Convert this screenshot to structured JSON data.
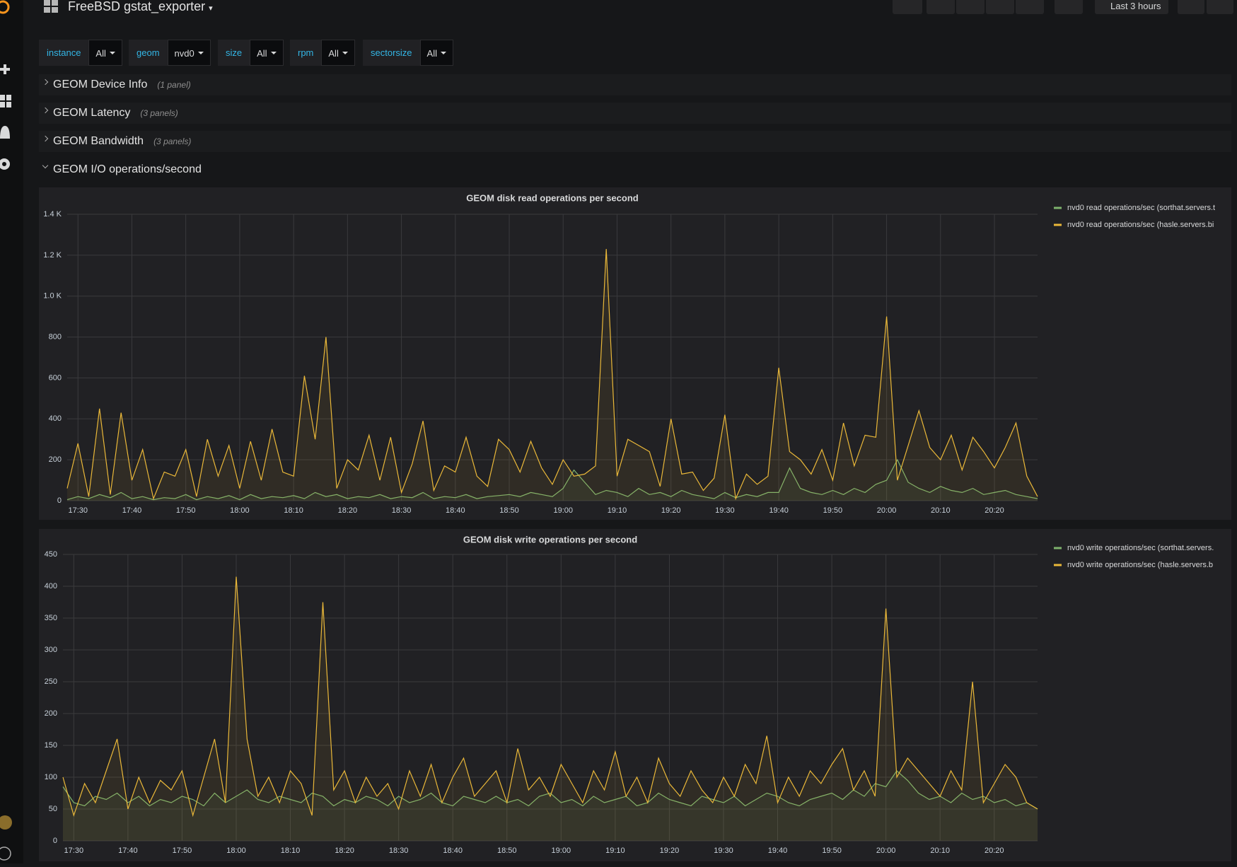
{
  "header": {
    "title": "FreeBSD gstat_exporter",
    "time_range": "Last 3 hours"
  },
  "variables": [
    {
      "label": "instance",
      "value": "All"
    },
    {
      "label": "geom",
      "value": "nvd0"
    },
    {
      "label": "size",
      "value": "All"
    },
    {
      "label": "rpm",
      "value": "All"
    },
    {
      "label": "sectorsize",
      "value": "All"
    }
  ],
  "rows": [
    {
      "title": "GEOM Device Info",
      "note": "(1 panel)"
    },
    {
      "title": "GEOM Latency",
      "note": "(3 panels)"
    },
    {
      "title": "GEOM Bandwidth",
      "note": "(3 panels)"
    },
    {
      "title": "GEOM I/O operations/second"
    }
  ],
  "chart_data": [
    {
      "type": "line",
      "title": "GEOM disk read operations per second",
      "x": [
        "17:28",
        "17:30",
        "17:32",
        "17:34",
        "17:36",
        "17:38",
        "17:40",
        "17:42",
        "17:44",
        "17:46",
        "17:48",
        "17:50",
        "17:52",
        "17:54",
        "17:56",
        "17:58",
        "18:00",
        "18:02",
        "18:04",
        "18:06",
        "18:08",
        "18:10",
        "18:12",
        "18:14",
        "18:16",
        "18:18",
        "18:20",
        "18:22",
        "18:24",
        "18:26",
        "18:28",
        "18:30",
        "18:32",
        "18:34",
        "18:36",
        "18:38",
        "18:40",
        "18:42",
        "18:44",
        "18:46",
        "18:48",
        "18:50",
        "18:52",
        "18:54",
        "18:56",
        "18:58",
        "19:00",
        "19:02",
        "19:04",
        "19:06",
        "19:08",
        "19:10",
        "19:12",
        "19:14",
        "19:16",
        "19:18",
        "19:20",
        "19:22",
        "19:24",
        "19:26",
        "19:28",
        "19:30",
        "19:32",
        "19:34",
        "19:36",
        "19:38",
        "19:40",
        "19:42",
        "19:44",
        "19:46",
        "19:48",
        "19:50",
        "19:52",
        "19:54",
        "19:56",
        "19:58",
        "20:00",
        "20:02",
        "20:04",
        "20:06",
        "20:08",
        "20:10",
        "20:12",
        "20:14",
        "20:16",
        "20:18",
        "20:20",
        "20:22",
        "20:24",
        "20:26",
        "20:28"
      ],
      "series": [
        {
          "name": "nvd0 read operations/sec (sorthat.servers.t",
          "color": "#7eb26d",
          "values": [
            5,
            20,
            10,
            30,
            15,
            40,
            10,
            20,
            5,
            15,
            10,
            30,
            5,
            20,
            10,
            25,
            5,
            30,
            10,
            20,
            15,
            25,
            10,
            40,
            20,
            30,
            10,
            20,
            15,
            30,
            10,
            20,
            15,
            40,
            10,
            20,
            15,
            30,
            10,
            20,
            25,
            30,
            20,
            40,
            30,
            20,
            60,
            150,
            90,
            30,
            50,
            40,
            20,
            60,
            30,
            40,
            20,
            50,
            30,
            20,
            10,
            40,
            15,
            30,
            20,
            40,
            40,
            160,
            60,
            40,
            30,
            50,
            30,
            60,
            40,
            80,
            100,
            200,
            90,
            60,
            40,
            70,
            50,
            40,
            60,
            30,
            40,
            50,
            30,
            20,
            10
          ]
        },
        {
          "name": "nvd0 read operations/sec (hasle.servers.bi",
          "color": "#eab839",
          "values": [
            60,
            280,
            20,
            450,
            30,
            430,
            100,
            250,
            10,
            140,
            120,
            250,
            20,
            300,
            120,
            270,
            60,
            290,
            100,
            350,
            140,
            120,
            610,
            300,
            800,
            60,
            200,
            150,
            320,
            100,
            310,
            40,
            180,
            390,
            50,
            170,
            140,
            310,
            120,
            70,
            300,
            250,
            140,
            290,
            160,
            80,
            200,
            120,
            130,
            170,
            1230,
            120,
            300,
            270,
            240,
            70,
            400,
            130,
            140,
            50,
            110,
            420,
            10,
            130,
            80,
            120,
            650,
            240,
            200,
            130,
            250,
            100,
            380,
            170,
            320,
            310,
            900,
            100,
            270,
            440,
            260,
            200,
            320,
            150,
            310,
            240,
            160,
            260,
            380,
            120,
            20
          ]
        }
      ],
      "xlim": [
        "17:28",
        "20:28"
      ],
      "xticks": [
        "17:30",
        "17:40",
        "17:50",
        "18:00",
        "18:10",
        "18:20",
        "18:30",
        "18:40",
        "18:50",
        "19:00",
        "19:10",
        "19:20",
        "19:30",
        "19:40",
        "19:50",
        "20:00",
        "20:10",
        "20:20"
      ],
      "ylim": [
        0,
        1400
      ],
      "yticks": [
        0,
        200,
        400,
        600,
        800,
        {
          "value": 1000,
          "label": "1.0 K"
        },
        {
          "value": 1200,
          "label": "1.2 K"
        },
        {
          "value": 1400,
          "label": "1.4 K"
        }
      ],
      "grid": true,
      "legend": "right"
    },
    {
      "type": "line",
      "title": "GEOM disk write operations per second",
      "x": [
        "17:28",
        "17:30",
        "17:32",
        "17:34",
        "17:36",
        "17:38",
        "17:40",
        "17:42",
        "17:44",
        "17:46",
        "17:48",
        "17:50",
        "17:52",
        "17:54",
        "17:56",
        "17:58",
        "18:00",
        "18:02",
        "18:04",
        "18:06",
        "18:08",
        "18:10",
        "18:12",
        "18:14",
        "18:16",
        "18:18",
        "18:20",
        "18:22",
        "18:24",
        "18:26",
        "18:28",
        "18:30",
        "18:32",
        "18:34",
        "18:36",
        "18:38",
        "18:40",
        "18:42",
        "18:44",
        "18:46",
        "18:48",
        "18:50",
        "18:52",
        "18:54",
        "18:56",
        "18:58",
        "19:00",
        "19:02",
        "19:04",
        "19:06",
        "19:08",
        "19:10",
        "19:12",
        "19:14",
        "19:16",
        "19:18",
        "19:20",
        "19:22",
        "19:24",
        "19:26",
        "19:28",
        "19:30",
        "19:32",
        "19:34",
        "19:36",
        "19:38",
        "19:40",
        "19:42",
        "19:44",
        "19:46",
        "19:48",
        "19:50",
        "19:52",
        "19:54",
        "19:56",
        "19:58",
        "20:00",
        "20:02",
        "20:04",
        "20:06",
        "20:08",
        "20:10",
        "20:12",
        "20:14",
        "20:16",
        "20:18",
        "20:20",
        "20:22",
        "20:24",
        "20:26",
        "20:28"
      ],
      "series": [
        {
          "name": "nvd0 write operations/sec (sorthat.servers.",
          "color": "#7eb26d",
          "values": [
            85,
            60,
            55,
            70,
            65,
            75,
            60,
            70,
            55,
            65,
            60,
            70,
            65,
            55,
            75,
            60,
            70,
            80,
            65,
            60,
            70,
            65,
            60,
            75,
            70,
            55,
            65,
            60,
            70,
            65,
            55,
            70,
            60,
            65,
            75,
            60,
            55,
            70,
            65,
            60,
            70,
            60,
            65,
            55,
            70,
            75,
            60,
            65,
            55,
            70,
            60,
            65,
            70,
            55,
            60,
            75,
            65,
            60,
            55,
            70,
            65,
            60,
            70,
            55,
            65,
            75,
            70,
            60,
            55,
            65,
            70,
            75,
            65,
            80,
            70,
            90,
            85,
            110,
            95,
            75,
            65,
            70,
            60,
            75,
            65,
            70,
            60,
            65,
            55,
            60,
            50
          ]
        },
        {
          "name": "nvd0 write operations/sec (hasle.servers.b",
          "color": "#eab839",
          "values": [
            100,
            40,
            90,
            60,
            110,
            160,
            50,
            100,
            60,
            95,
            80,
            110,
            40,
            100,
            160,
            60,
            415,
            160,
            70,
            100,
            60,
            110,
            90,
            40,
            375,
            80,
            110,
            60,
            100,
            70,
            90,
            50,
            110,
            70,
            120,
            60,
            100,
            130,
            70,
            90,
            110,
            60,
            145,
            80,
            100,
            70,
            120,
            90,
            60,
            110,
            80,
            140,
            70,
            100,
            60,
            130,
            90,
            70,
            110,
            80,
            60,
            100,
            70,
            120,
            90,
            165,
            60,
            100,
            70,
            110,
            90,
            120,
            145,
            80,
            110,
            70,
            365,
            100,
            130,
            110,
            90,
            70,
            110,
            80,
            250,
            60,
            90,
            120,
            100,
            60,
            50
          ]
        }
      ],
      "xlim": [
        "17:28",
        "20:28"
      ],
      "xticks": [
        "17:30",
        "17:40",
        "17:50",
        "18:00",
        "18:10",
        "18:20",
        "18:30",
        "18:40",
        "18:50",
        "19:00",
        "19:10",
        "19:20",
        "19:30",
        "19:40",
        "19:50",
        "20:00",
        "20:10",
        "20:20"
      ],
      "ylim": [
        0,
        450
      ],
      "yticks": [
        0,
        50,
        100,
        150,
        200,
        250,
        300,
        350,
        400,
        450
      ],
      "grid": true,
      "legend": "right"
    }
  ]
}
